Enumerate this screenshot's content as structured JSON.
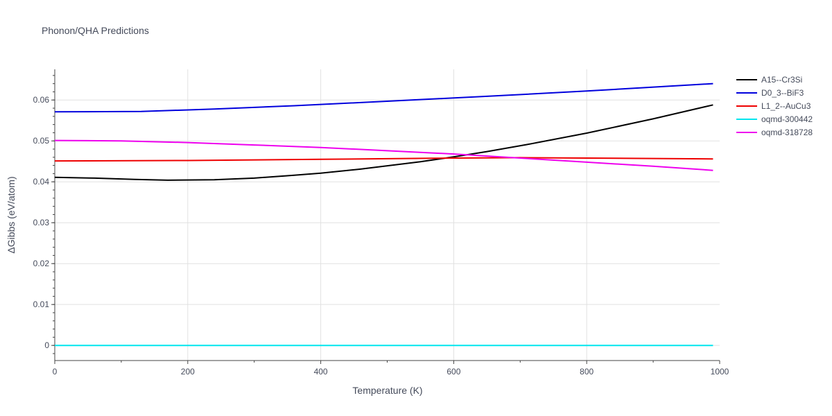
{
  "chart_data": {
    "type": "line",
    "title": "Phonon/QHA Predictions",
    "xlabel": "Temperature (K)",
    "ylabel": "ΔGibbs (eV/atom)",
    "xlim": [
      0,
      1000
    ],
    "ylim": [
      -0.0037,
      0.0675
    ],
    "xticks": [
      0,
      200,
      400,
      600,
      800,
      1000
    ],
    "yticks": [
      0,
      0.01,
      0.02,
      0.03,
      0.04,
      0.05,
      0.06
    ],
    "ytick_labels": [
      "0",
      "0.01",
      "0.02",
      "0.03",
      "0.04",
      "0.05",
      "0.06"
    ],
    "grid": true,
    "legend_position": "top-right",
    "series": [
      {
        "name": "A15--Cr3Si",
        "color": "#000000",
        "x": [
          0,
          60,
          120,
          170,
          240,
          300,
          360,
          400,
          460,
          550,
          600,
          650,
          710,
          800,
          900,
          990
        ],
        "y": [
          0.0411,
          0.0409,
          0.0406,
          0.0404,
          0.0405,
          0.0409,
          0.0416,
          0.0421,
          0.0431,
          0.0449,
          0.0461,
          0.0474,
          0.0491,
          0.0519,
          0.0554,
          0.0588
        ]
      },
      {
        "name": "D0_3--BiF3",
        "color": "#0000dd",
        "x": [
          0,
          130,
          240,
          360,
          500,
          650,
          800,
          990
        ],
        "y": [
          0.0571,
          0.0572,
          0.0578,
          0.0586,
          0.0597,
          0.0609,
          0.0622,
          0.064
        ]
      },
      {
        "name": "L1_2--AuCu3",
        "color": "#ee0000",
        "x": [
          0,
          200,
          400,
          600,
          700,
          800,
          990
        ],
        "y": [
          0.0451,
          0.0452,
          0.0455,
          0.0458,
          0.0459,
          0.0458,
          0.0456
        ]
      },
      {
        "name": "oqmd-300442",
        "color": "#00e5ee",
        "x": [
          0,
          990
        ],
        "y": [
          0,
          0
        ]
      },
      {
        "name": "oqmd-318728",
        "color": "#ee00ee",
        "x": [
          0,
          100,
          200,
          300,
          400,
          500,
          600,
          700,
          800,
          900,
          990
        ],
        "y": [
          0.0501,
          0.05,
          0.0496,
          0.049,
          0.0484,
          0.0476,
          0.0468,
          0.0458,
          0.0448,
          0.0438,
          0.0428
        ]
      }
    ]
  }
}
